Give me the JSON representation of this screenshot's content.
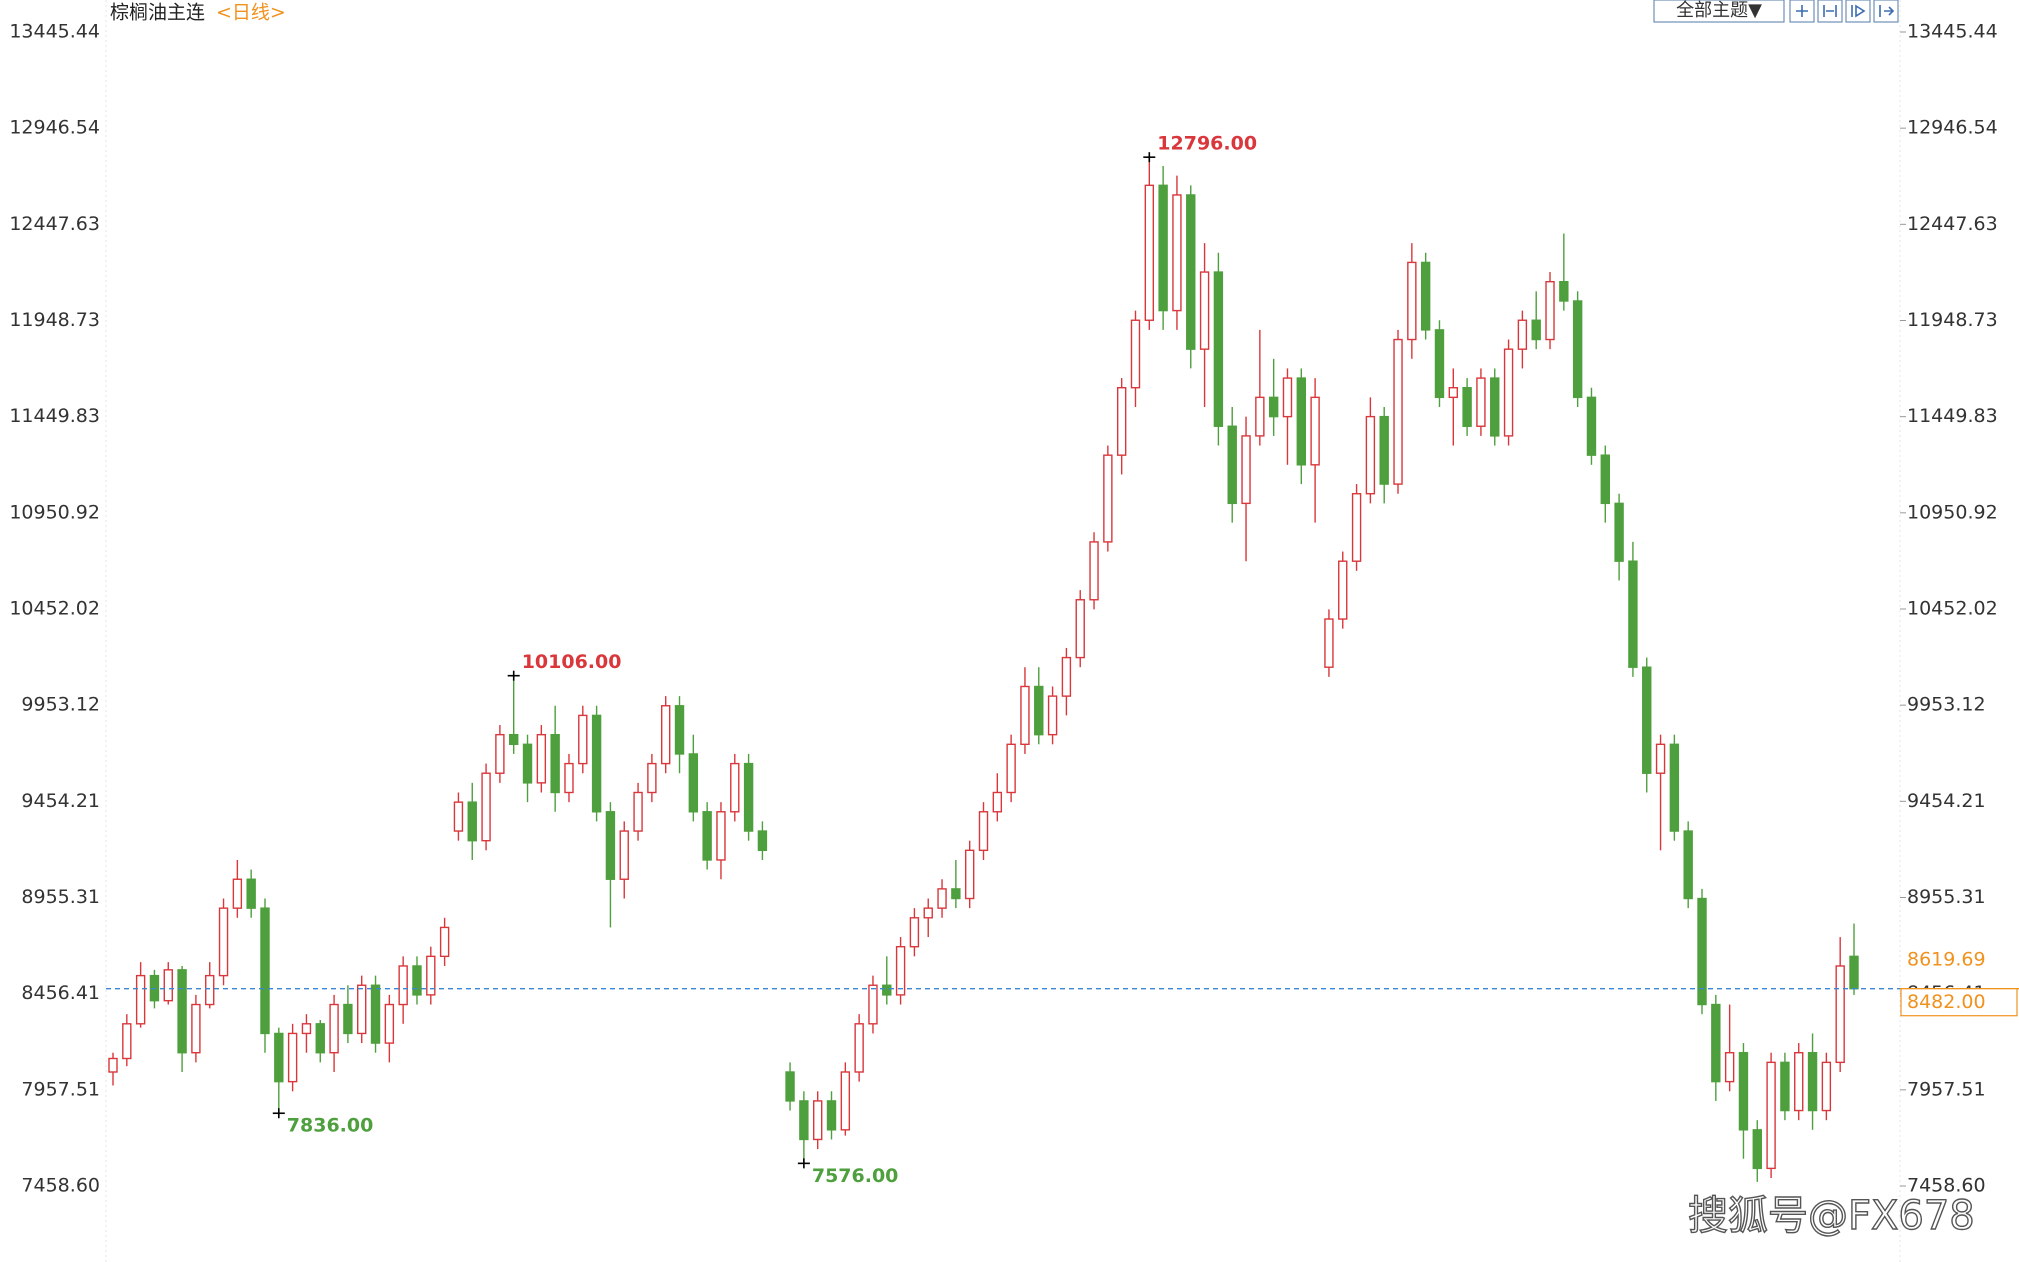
{
  "chart_data": {
    "type": "candlestick",
    "title": "棕榈油主连",
    "subtitle": "<日线>",
    "ylim": [
      7100.6,
      13611.4
    ],
    "yticks": [
      13445.44,
      12946.54,
      12447.63,
      11948.73,
      11449.83,
      10950.92,
      10452.02,
      9953.12,
      9454.21,
      8955.31,
      8456.41,
      7957.51,
      {
        "value": 7458.6,
        "label": "7458.60"
      }
    ],
    "up_color": "#d9373b",
    "down_color": "#4e9f3d",
    "candles": [
      [
        8050,
        8150,
        7980,
        8120
      ],
      [
        8120,
        8350,
        8080,
        8300
      ],
      [
        8300,
        8620,
        8280,
        8550
      ],
      [
        8550,
        8580,
        8380,
        8420
      ],
      [
        8420,
        8620,
        8400,
        8580
      ],
      [
        8580,
        8600,
        8050,
        8150
      ],
      [
        8150,
        8450,
        8100,
        8400
      ],
      [
        8400,
        8620,
        8380,
        8550
      ],
      [
        8550,
        8950,
        8500,
        8900
      ],
      [
        8900,
        9150,
        8850,
        9050
      ],
      [
        9050,
        9100,
        8850,
        8900
      ],
      [
        8900,
        8950,
        8150,
        8250
      ],
      [
        8250,
        8280,
        7836,
        8000
      ],
      [
        8000,
        8300,
        7950,
        8250
      ],
      [
        8250,
        8350,
        8150,
        8300
      ],
      [
        8300,
        8320,
        8100,
        8150
      ],
      [
        8150,
        8450,
        8050,
        8400
      ],
      [
        8400,
        8500,
        8200,
        8250
      ],
      [
        8250,
        8550,
        8200,
        8500
      ],
      [
        8500,
        8550,
        8150,
        8200
      ],
      [
        8200,
        8450,
        8100,
        8400
      ],
      [
        8400,
        8650,
        8300,
        8600
      ],
      [
        8600,
        8650,
        8400,
        8450
      ],
      [
        8450,
        8700,
        8400,
        8650
      ],
      [
        8650,
        8850,
        8600,
        8800
      ],
      [
        9300,
        9500,
        9250,
        9450
      ],
      [
        9450,
        9550,
        9150,
        9250
      ],
      [
        9250,
        9650,
        9200,
        9600
      ],
      [
        9600,
        9850,
        9550,
        9800
      ],
      [
        9800,
        10106,
        9700,
        9750
      ],
      [
        9750,
        9800,
        9450,
        9550
      ],
      [
        9550,
        9850,
        9500,
        9800
      ],
      [
        9800,
        9950,
        9400,
        9500
      ],
      [
        9500,
        9700,
        9450,
        9650
      ],
      [
        9650,
        9950,
        9600,
        9900
      ],
      [
        9900,
        9950,
        9350,
        9400
      ],
      [
        9400,
        9450,
        8800,
        9050
      ],
      [
        9050,
        9350,
        8950,
        9300
      ],
      [
        9300,
        9550,
        9250,
        9500
      ],
      [
        9500,
        9700,
        9450,
        9650
      ],
      [
        9650,
        10000,
        9600,
        9950
      ],
      [
        9950,
        10000,
        9600,
        9700
      ],
      [
        9700,
        9800,
        9350,
        9400
      ],
      [
        9400,
        9450,
        9100,
        9150
      ],
      [
        9150,
        9450,
        9050,
        9400
      ],
      [
        9400,
        9700,
        9350,
        9650
      ],
      [
        9650,
        9700,
        9250,
        9300
      ],
      [
        9300,
        9350,
        9150,
        9200
      ],
      null,
      [
        8050,
        8100,
        7850,
        7900
      ],
      [
        7900,
        7950,
        7576,
        7700
      ],
      [
        7700,
        7950,
        7650,
        7900
      ],
      [
        7900,
        7950,
        7700,
        7750
      ],
      [
        7750,
        8100,
        7720,
        8050
      ],
      [
        8050,
        8350,
        8000,
        8300
      ],
      [
        8300,
        8550,
        8250,
        8500
      ],
      [
        8500,
        8650,
        8400,
        8450
      ],
      [
        8450,
        8750,
        8400,
        8700
      ],
      [
        8700,
        8900,
        8650,
        8850
      ],
      [
        8850,
        8950,
        8750,
        8900
      ],
      [
        8900,
        9050,
        8850,
        9000
      ],
      [
        9000,
        9150,
        8900,
        8950
      ],
      [
        8950,
        9250,
        8900,
        9200
      ],
      [
        9200,
        9450,
        9150,
        9400
      ],
      [
        9400,
        9600,
        9350,
        9500
      ],
      [
        9500,
        9800,
        9450,
        9750
      ],
      [
        9750,
        10150,
        9700,
        10050
      ],
      [
        10050,
        10150,
        9750,
        9800
      ],
      [
        9800,
        10050,
        9750,
        10000
      ],
      [
        10000,
        10250,
        9900,
        10200
      ],
      [
        10200,
        10550,
        10150,
        10500
      ],
      [
        10500,
        10850,
        10450,
        10800
      ],
      [
        10800,
        11300,
        10750,
        11250
      ],
      [
        11250,
        11650,
        11150,
        11600
      ],
      [
        11600,
        12000,
        11500,
        11950
      ],
      [
        11950,
        12796,
        11900,
        12650
      ],
      [
        12650,
        12750,
        11900,
        12000
      ],
      [
        12000,
        12700,
        11900,
        12600
      ],
      [
        12600,
        12650,
        11700,
        11800
      ],
      [
        11800,
        12350,
        11500,
        12200
      ],
      [
        12200,
        12300,
        11300,
        11400
      ],
      [
        11400,
        11500,
        10900,
        11000
      ],
      [
        11000,
        11450,
        10700,
        11350
      ],
      [
        11350,
        11900,
        11300,
        11550
      ],
      [
        11550,
        11750,
        11350,
        11450
      ],
      [
        11450,
        11700,
        11200,
        11650
      ],
      [
        11650,
        11700,
        11100,
        11200
      ],
      [
        11200,
        11650,
        10900,
        11550
      ],
      [
        10150,
        10450,
        10100,
        10400
      ],
      [
        10400,
        10750,
        10350,
        10700
      ],
      [
        10700,
        11100,
        10650,
        11050
      ],
      [
        11050,
        11550,
        11000,
        11450
      ],
      [
        11450,
        11500,
        11000,
        11100
      ],
      [
        11100,
        11900,
        11050,
        11850
      ],
      [
        11850,
        12350,
        11750,
        12250
      ],
      [
        12250,
        12300,
        11850,
        11900
      ],
      [
        11900,
        11950,
        11500,
        11550
      ],
      [
        11550,
        11700,
        11300,
        11600
      ],
      [
        11600,
        11650,
        11350,
        11400
      ],
      [
        11400,
        11700,
        11350,
        11650
      ],
      [
        11650,
        11700,
        11300,
        11350
      ],
      [
        11350,
        11850,
        11300,
        11800
      ],
      [
        11800,
        12000,
        11700,
        11950
      ],
      [
        11950,
        12100,
        11800,
        11850
      ],
      [
        11850,
        12200,
        11800,
        12150
      ],
      [
        12150,
        12400,
        12000,
        12050
      ],
      [
        12050,
        12100,
        11500,
        11550
      ],
      [
        11550,
        11600,
        11200,
        11250
      ],
      [
        11250,
        11300,
        10900,
        11000
      ],
      [
        11000,
        11050,
        10600,
        10700
      ],
      [
        10700,
        10800,
        10100,
        10150
      ],
      [
        10150,
        10200,
        9500,
        9600
      ],
      [
        9600,
        9800,
        9200,
        9750
      ],
      [
        9750,
        9800,
        9250,
        9300
      ],
      [
        9300,
        9350,
        8900,
        8950
      ],
      [
        8950,
        9000,
        8350,
        8400
      ],
      [
        8400,
        8450,
        7900,
        8000
      ],
      [
        8000,
        8400,
        7950,
        8150
      ],
      [
        8150,
        8200,
        7600,
        7750
      ],
      [
        7750,
        7800,
        7480,
        7550
      ],
      [
        7550,
        8150,
        7500,
        8100
      ],
      [
        8100,
        8150,
        7800,
        7850
      ],
      [
        7850,
        8200,
        7800,
        8150
      ],
      [
        8150,
        8250,
        7750,
        7850
      ],
      [
        7850,
        8150,
        7800,
        8100
      ],
      [
        8100,
        8750,
        8050,
        8600
      ],
      [
        8650,
        8820,
        8450,
        8482
      ]
    ],
    "annotations": [
      {
        "value": 12796,
        "label": "12796.00"
      },
      {
        "value": 10106,
        "label": "10106.00"
      },
      {
        "value": 7836,
        "label": "7836.00"
      },
      {
        "value": 7576,
        "label": "7576.00"
      }
    ],
    "settle_price": {
      "value": 8619.69,
      "label": "8619.69"
    },
    "last_price": {
      "value": 8482,
      "label": "8482.00"
    },
    "price_line_color": "#3b86d6",
    "price_label_color": "#f0921e"
  },
  "toolbar": {
    "theme_button": "全部主题▼"
  },
  "watermark": "搜狐号@FX678"
}
